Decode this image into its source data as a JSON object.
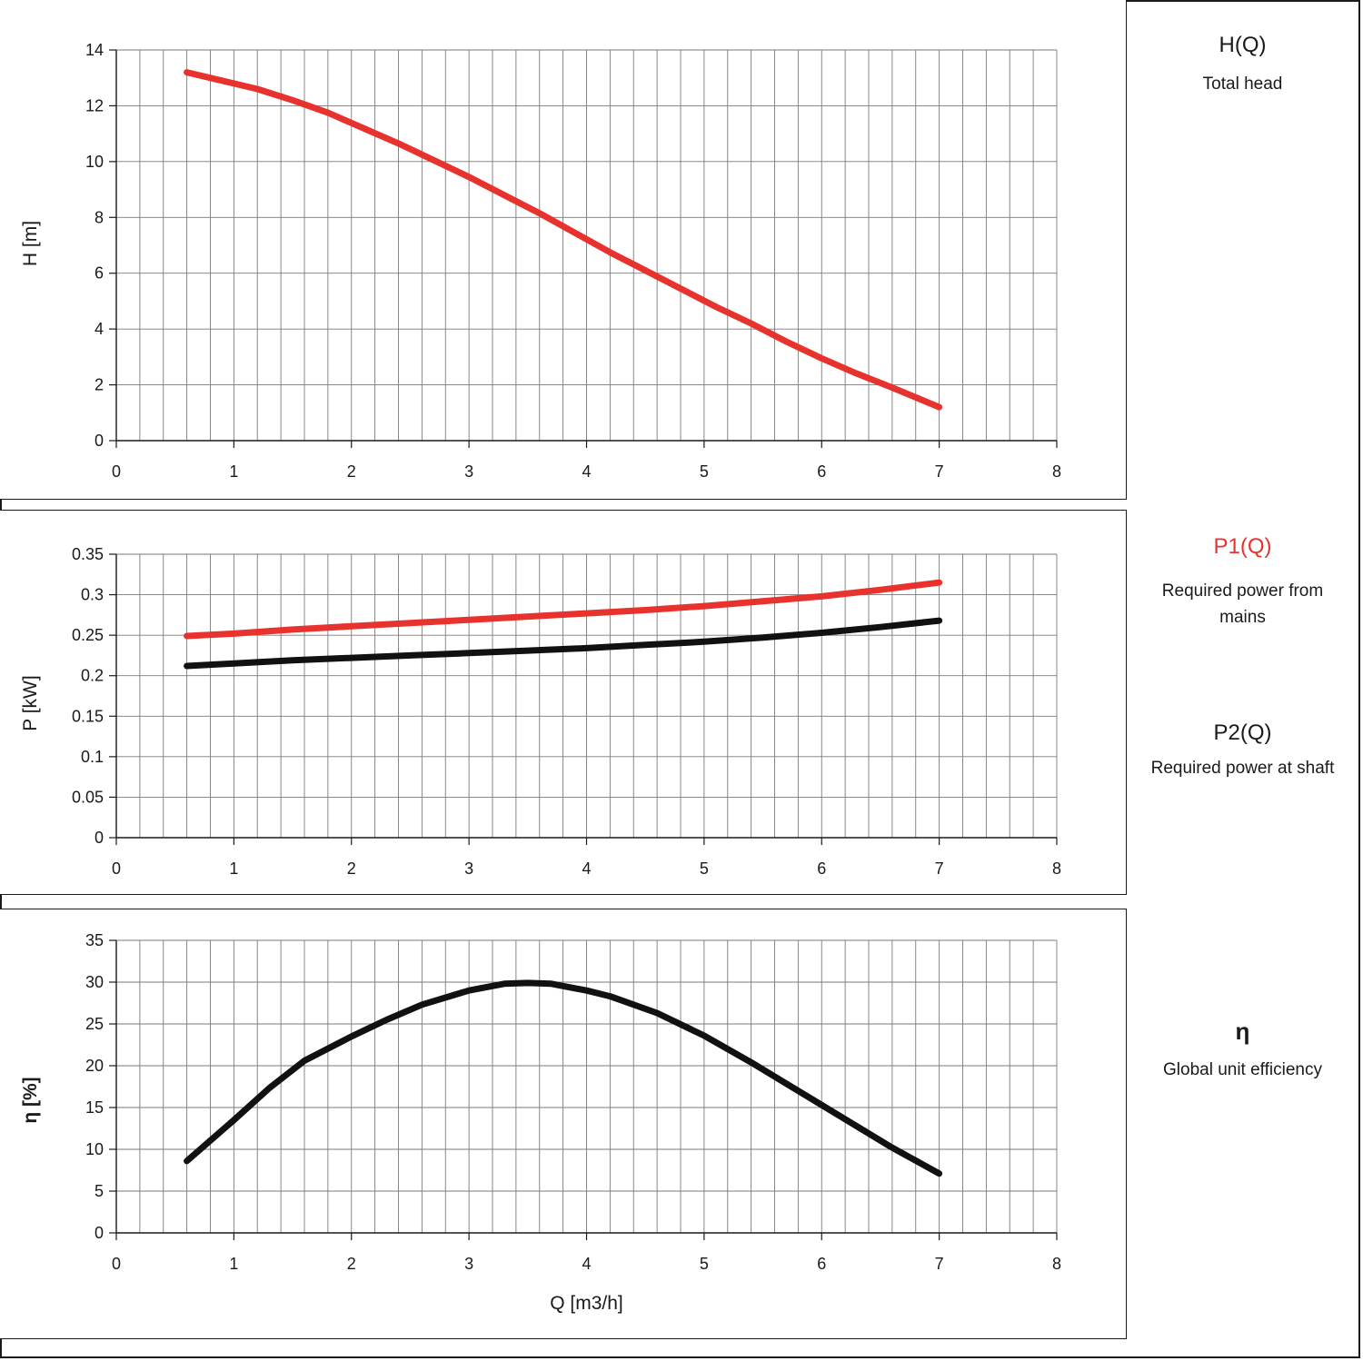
{
  "chart_data": [
    {
      "type": "line",
      "id": "head",
      "xlabel": "",
      "ylabel": "H [m]",
      "xlim": [
        0,
        8
      ],
      "ylim": [
        0,
        14
      ],
      "xticks": [
        "0",
        "1",
        "2",
        "3",
        "4",
        "5",
        "6",
        "7",
        "8"
      ],
      "yticks": [
        "0",
        "2",
        "4",
        "6",
        "8",
        "10",
        "12",
        "14"
      ],
      "grid": true,
      "series": [
        {
          "color": "#e8322e",
          "x": [
            0.6,
            0.9,
            1.2,
            1.5,
            1.8,
            2.1,
            2.4,
            2.7,
            3.0,
            3.3,
            3.6,
            3.9,
            4.2,
            4.5,
            4.8,
            5.1,
            5.4,
            5.7,
            6.0,
            6.3,
            6.6,
            7.0
          ],
          "y": [
            13.2,
            12.9,
            12.6,
            12.2,
            11.75,
            11.2,
            10.65,
            10.05,
            9.45,
            8.8,
            8.15,
            7.45,
            6.75,
            6.1,
            5.45,
            4.8,
            4.2,
            3.55,
            2.95,
            2.4,
            1.9,
            1.2
          ]
        }
      ]
    },
    {
      "type": "line",
      "id": "power",
      "xlabel": "",
      "ylabel": "P [kW]",
      "xlim": [
        0,
        8
      ],
      "ylim": [
        0,
        0.35
      ],
      "xticks": [
        "0",
        "1",
        "2",
        "3",
        "4",
        "5",
        "6",
        "7",
        "8"
      ],
      "yticks": [
        "0",
        "0.05",
        "0.1",
        "0.15",
        "0.2",
        "0.25",
        "0.3",
        "0.35"
      ],
      "grid": true,
      "series": [
        {
          "color": "#e8322e",
          "x": [
            0.6,
            1.0,
            1.5,
            2.0,
            2.5,
            3.0,
            3.5,
            4.0,
            4.5,
            5.0,
            5.5,
            6.0,
            6.5,
            7.0
          ],
          "y": [
            0.249,
            0.252,
            0.257,
            0.261,
            0.265,
            0.269,
            0.273,
            0.277,
            0.281,
            0.286,
            0.292,
            0.298,
            0.306,
            0.315
          ]
        },
        {
          "color": "#111111",
          "x": [
            0.6,
            1.0,
            1.5,
            2.0,
            2.5,
            3.0,
            3.5,
            4.0,
            4.5,
            5.0,
            5.5,
            6.0,
            6.5,
            7.0
          ],
          "y": [
            0.212,
            0.215,
            0.219,
            0.222,
            0.225,
            0.228,
            0.231,
            0.234,
            0.238,
            0.242,
            0.247,
            0.253,
            0.26,
            0.268
          ]
        }
      ]
    },
    {
      "type": "line",
      "id": "efficiency",
      "xlabel": "Q [m3/h]",
      "ylabel": "η [%]",
      "xlim": [
        0,
        8
      ],
      "ylim": [
        0,
        35
      ],
      "xticks": [
        "0",
        "1",
        "2",
        "3",
        "4",
        "5",
        "6",
        "7",
        "8"
      ],
      "yticks": [
        "0",
        "5",
        "10",
        "15",
        "20",
        "25",
        "30",
        "35"
      ],
      "grid": true,
      "series": [
        {
          "color": "#111111",
          "x": [
            0.6,
            1.0,
            1.3,
            1.6,
            2.0,
            2.3,
            2.6,
            3.0,
            3.3,
            3.5,
            3.7,
            4.0,
            4.2,
            4.6,
            5.0,
            5.4,
            5.8,
            6.2,
            6.6,
            7.0
          ],
          "y": [
            8.6,
            13.5,
            17.3,
            20.6,
            23.5,
            25.5,
            27.3,
            29.0,
            29.8,
            29.9,
            29.8,
            29.0,
            28.3,
            26.3,
            23.6,
            20.4,
            17.0,
            13.6,
            10.2,
            7.1
          ]
        }
      ]
    }
  ],
  "legend": {
    "head_title": "H(Q)",
    "head_desc": "Total head",
    "p1_title": "P1(Q)",
    "p1_desc_line1": "Required power from",
    "p1_desc_line2": "mains",
    "p2_title": "P2(Q)",
    "p2_desc": "Required power at shaft",
    "eta_title": "η",
    "eta_desc": "Global unit efficiency",
    "p1_color": "#e8322e"
  }
}
